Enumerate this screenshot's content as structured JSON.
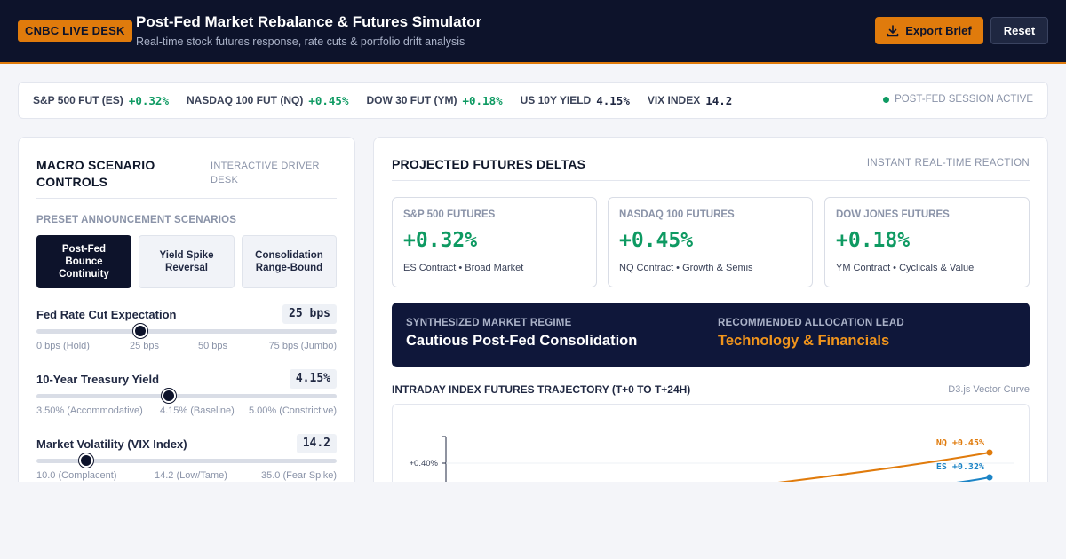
{
  "header": {
    "badge": "CNBC LIVE DESK",
    "title": "Post-Fed Market Rebalance & Futures Simulator",
    "subtitle": "Real-time stock futures response, rate cuts & portfolio drift analysis",
    "export_label": "Export Brief",
    "reset_label": "Reset"
  },
  "ticker": {
    "items": [
      {
        "label": "S&P 500 FUT (ES)",
        "value": "+0.32%"
      },
      {
        "label": "NASDAQ 100 FUT (NQ)",
        "value": "+0.45%"
      },
      {
        "label": "DOW 30 FUT (YM)",
        "value": "+0.18%"
      },
      {
        "label": "US 10Y YIELD",
        "value": "4.15%"
      },
      {
        "label": "VIX INDEX",
        "value": "14.2"
      }
    ],
    "session": "POST-FED SESSION ACTIVE"
  },
  "controls": {
    "title": "MACRO SCENARIO CONTROLS",
    "tag": "INTERACTIVE DRIVER DESK",
    "presets_label": "PRESET ANNOUNCEMENT SCENARIOS",
    "presets": [
      "Post-Fed Bounce Continuity",
      "Yield Spike Reversal",
      "Consolidation Range-Bound"
    ],
    "sliders": [
      {
        "label": "Fed Rate Cut Expectation",
        "value": "25 bps",
        "level": 0.345,
        "scale": [
          "0 bps (Hold)",
          "25 bps",
          "50 bps",
          "75 bps (Jumbo)"
        ]
      },
      {
        "label": "10-Year Treasury Yield",
        "value": "4.15%",
        "level": 0.44,
        "scale": [
          "3.50% (Accommodative)",
          "4.15% (Baseline)",
          "5.00% (Constrictive)"
        ]
      },
      {
        "label": "Market Volatility (VIX Index)",
        "value": "14.2",
        "level": 0.165,
        "scale": [
          "10.0 (Complacent)",
          "14.2 (Low/Tame)",
          "35.0 (Fear Spike)"
        ]
      }
    ]
  },
  "deltas": {
    "title": "PROJECTED FUTURES DELTAS",
    "tag": "INSTANT REAL-TIME REACTION",
    "cards": [
      {
        "label": "S&P 500 FUTURES",
        "value": "+0.32%",
        "sub": "ES Contract • Broad Market"
      },
      {
        "label": "NASDAQ 100 FUTURES",
        "value": "+0.45%",
        "sub": "NQ Contract • Growth & Semis"
      },
      {
        "label": "DOW JONES FUTURES",
        "value": "+0.18%",
        "sub": "YM Contract • Cyclicals & Value"
      }
    ],
    "regime_label": "SYNTHESIZED MARKET REGIME",
    "regime_value": "Cautious Post-Fed Consolidation",
    "allocation_label": "RECOMMENDED ALLOCATION LEAD",
    "allocation_value": "Technology & Financials"
  },
  "chart": {
    "title": "INTRADAY INDEX FUTURES TRAJECTORY (T+0 TO T+24H)",
    "tag": "D3.js Vector Curve"
  },
  "chart_data": {
    "type": "line",
    "title": "INTRADAY INDEX FUTURES TRAJECTORY (T+0 TO T+24H)",
    "y_tick_labels": [
      "+0.40%"
    ],
    "series": [
      {
        "name": "NQ",
        "end_label": "NQ +0.45%",
        "end_value": 0.45,
        "color": "#e07b0c"
      },
      {
        "name": "ES",
        "end_label": "ES +0.32%",
        "end_value": 0.32,
        "color": "#1c84c6"
      }
    ]
  },
  "colors": {
    "accent": "#e07b0c",
    "navy": "#0d132b",
    "positive": "#0e9a62",
    "es_line": "#1c84c6"
  }
}
